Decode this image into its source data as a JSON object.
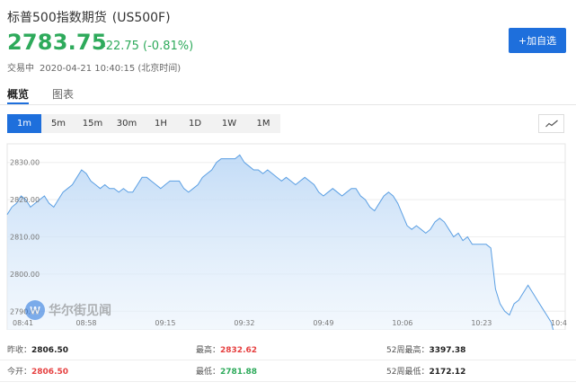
{
  "header": {
    "title": "标普500指数期货",
    "code": "(US500F)",
    "price": "2783.75",
    "change": "-22.75 (-0.81%)",
    "status": "交易中",
    "timestamp": "2020-04-21 10:40:15 (北京时间)",
    "add_button": "+加自选"
  },
  "tabs": [
    {
      "label": "概览",
      "active": true
    },
    {
      "label": "图表",
      "active": false
    }
  ],
  "ranges": [
    "1m",
    "5m",
    "15m",
    "30m",
    "1H",
    "1D",
    "1W",
    "1M"
  ],
  "active_range": "1m",
  "chart_type_icon": "line-chart-icon",
  "watermark": "华尔街见闻",
  "colors": {
    "accent": "#1e6fdc",
    "up": "#e64141",
    "down": "#2eaa5b",
    "line": "#5b9fe3"
  },
  "chart_data": {
    "type": "area",
    "ylim": [
      2785,
      2835
    ],
    "yticks": [
      2830,
      2820,
      2810,
      2800,
      2790
    ],
    "ytick_labels": [
      "2830.00",
      "2820.00",
      "2810.00",
      "2800.00",
      "2790.00"
    ],
    "x_tick_labels": [
      "08:41",
      "08:58",
      "09:15",
      "09:32",
      "09:49",
      "10:06",
      "10:23",
      "10:4"
    ],
    "x_tick_values": [
      0,
      17,
      34,
      51,
      68,
      85,
      102,
      119
    ],
    "xlim": [
      0,
      120
    ],
    "series": [
      {
        "values": [
          2816,
          2818,
          2819,
          2821,
          2820,
          2818,
          2819,
          2820,
          2821,
          2819,
          2818,
          2820,
          2822,
          2823,
          2824,
          2826,
          2828,
          2827,
          2825,
          2824,
          2823,
          2824,
          2823,
          2823,
          2822,
          2823,
          2822,
          2822,
          2824,
          2826,
          2826,
          2825,
          2824,
          2823,
          2824,
          2825,
          2825,
          2825,
          2823,
          2822,
          2823,
          2824,
          2826,
          2827,
          2828,
          2830,
          2831,
          2831,
          2831,
          2831,
          2832,
          2830,
          2829,
          2828,
          2828,
          2827,
          2828,
          2827,
          2826,
          2825,
          2826,
          2825,
          2824,
          2825,
          2826,
          2825,
          2824,
          2822,
          2821,
          2822,
          2823,
          2822,
          2821,
          2822,
          2823,
          2823,
          2821,
          2820,
          2818,
          2817,
          2819,
          2821,
          2822,
          2821,
          2819,
          2816,
          2813,
          2812,
          2813,
          2812,
          2811,
          2812,
          2814,
          2815,
          2814,
          2812,
          2810,
          2811,
          2809,
          2810,
          2808,
          2808,
          2808,
          2808,
          2807,
          2796,
          2792,
          2790,
          2789,
          2792,
          2793,
          2795,
          2797,
          2795,
          2793,
          2791,
          2789,
          2787,
          2782,
          2782,
          2782
        ]
      }
    ]
  },
  "stats": {
    "rows": [
      [
        {
          "label": "昨收：",
          "value": "2806.50",
          "color": "dark"
        },
        {
          "label": "最高：",
          "value": "2832.62",
          "color": "red"
        },
        {
          "label": "52周最高：",
          "value": "3397.38",
          "color": "dark"
        }
      ],
      [
        {
          "label": "今开：",
          "value": "2806.50",
          "color": "red"
        },
        {
          "label": "最低：",
          "value": "2781.88",
          "color": "green"
        },
        {
          "label": "52周最低：",
          "value": "2172.12",
          "color": "dark"
        }
      ]
    ]
  }
}
